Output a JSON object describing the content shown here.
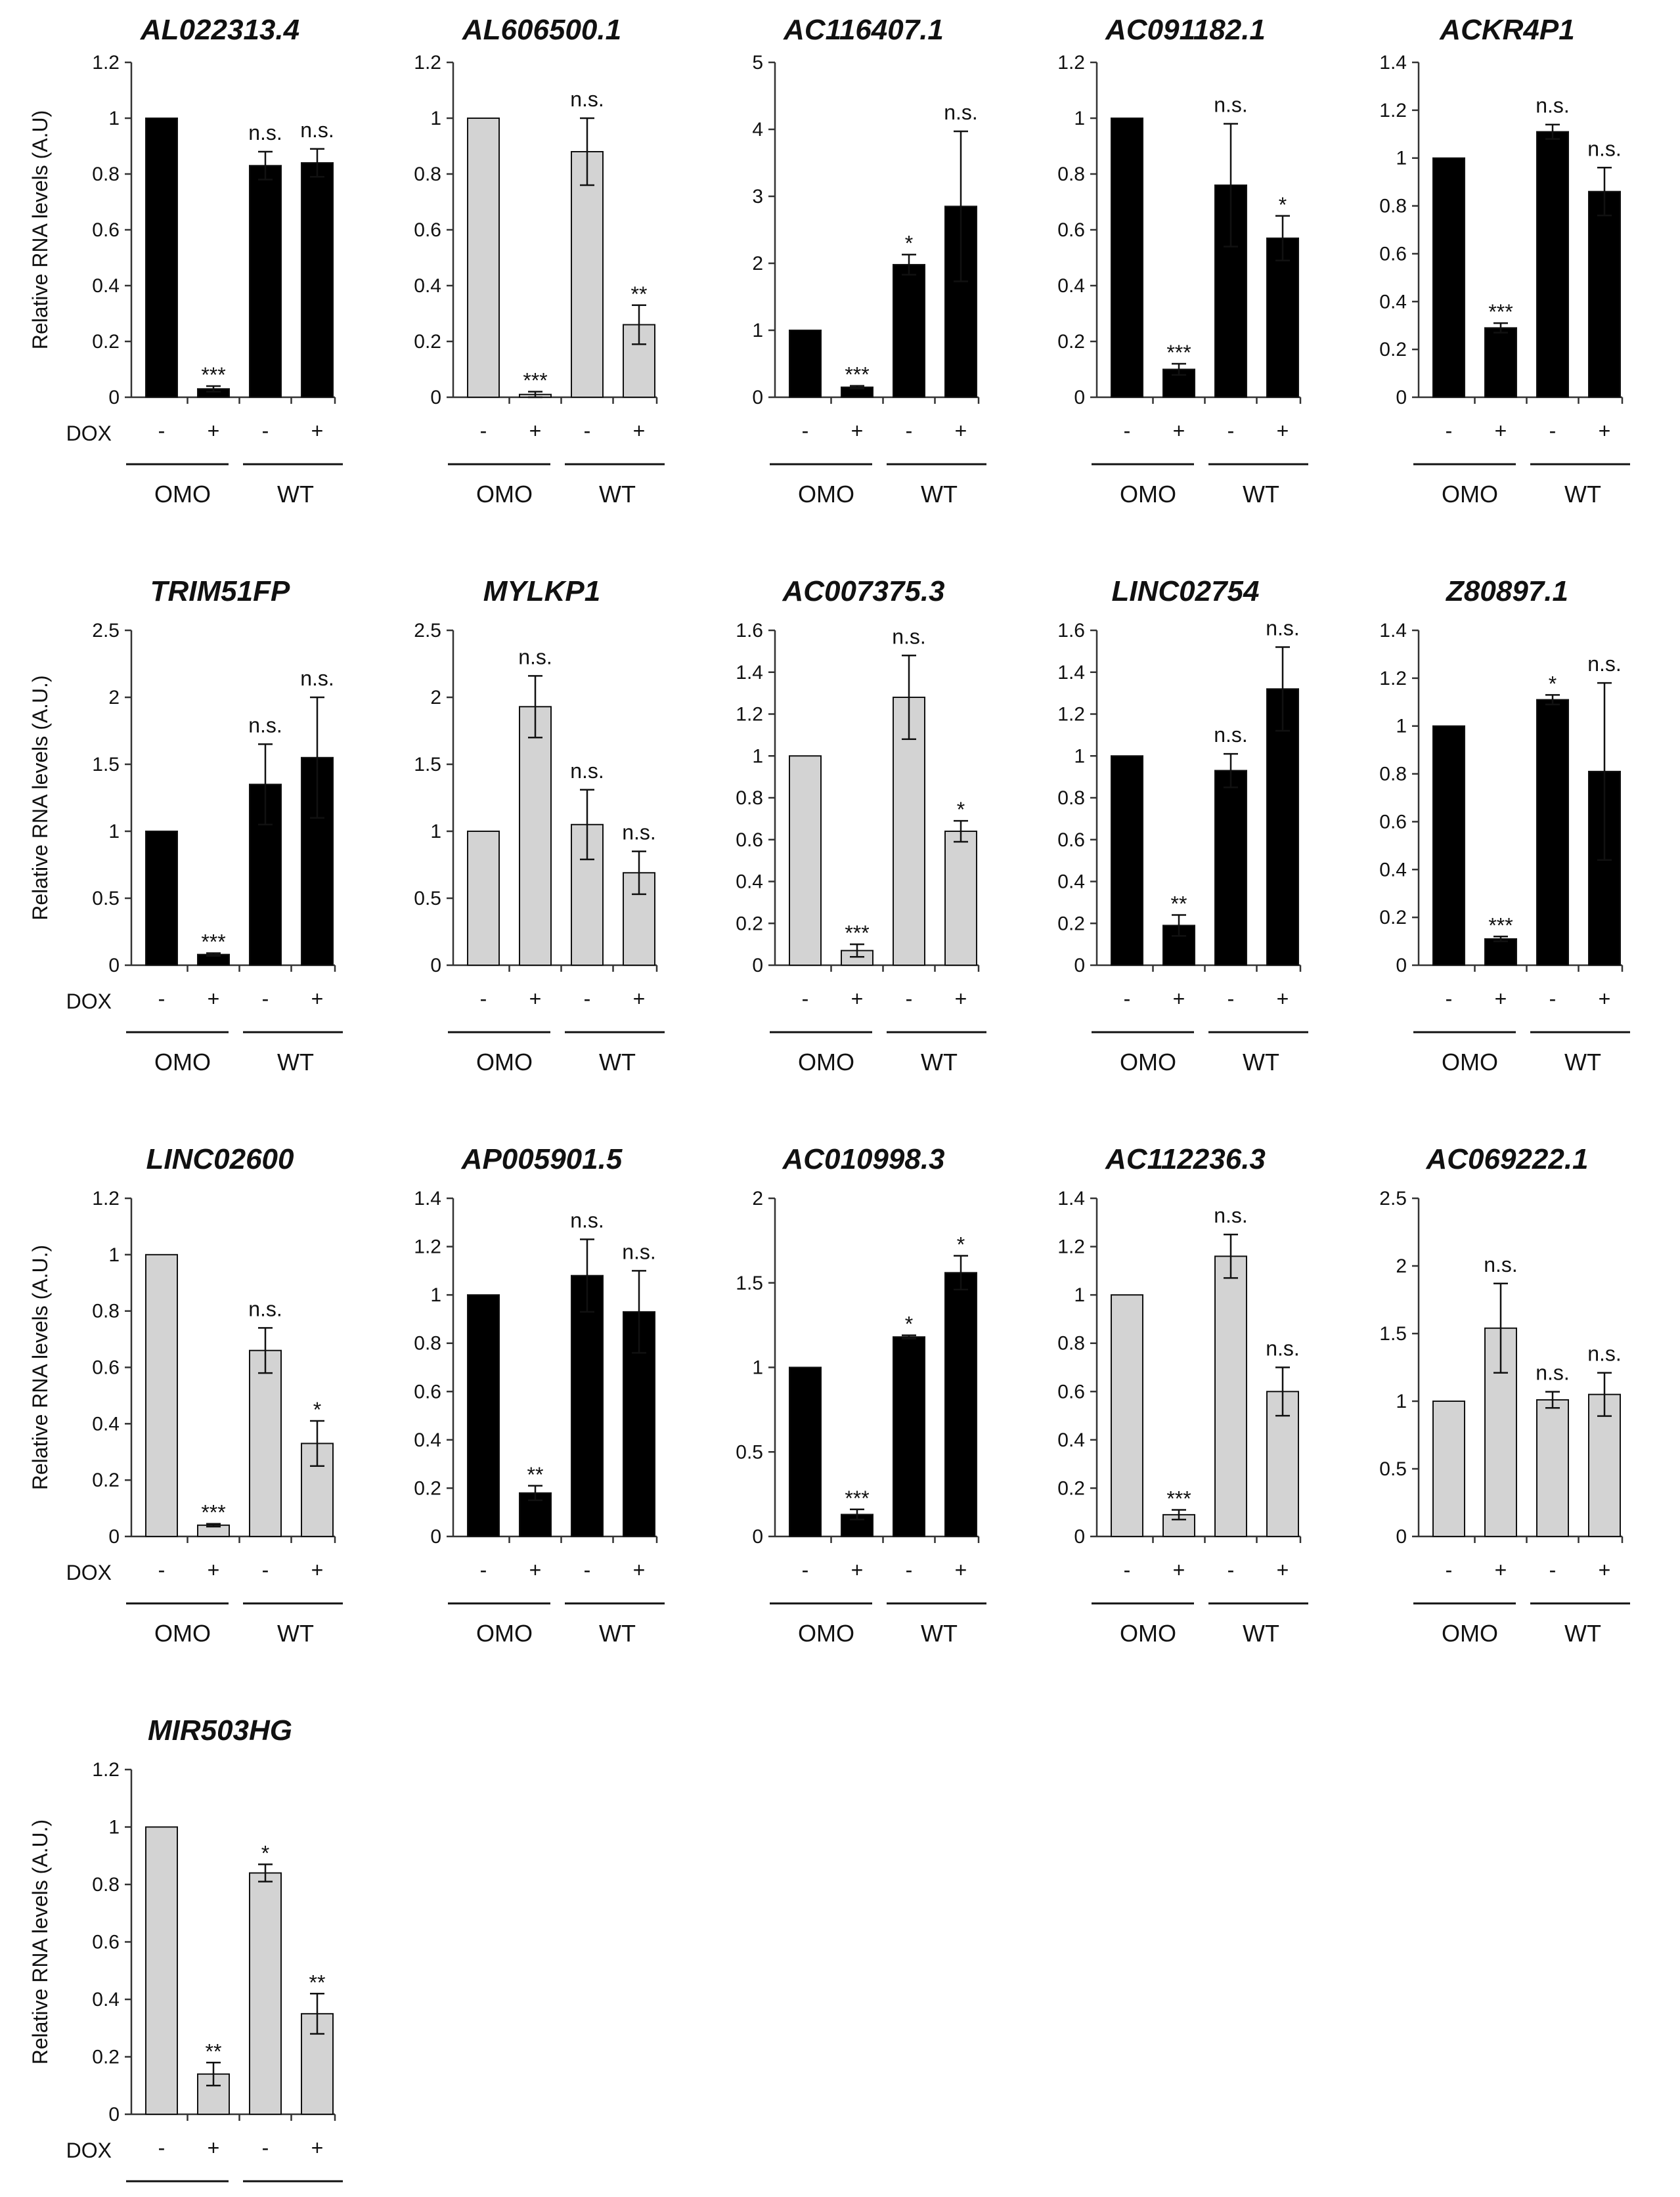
{
  "colors": {
    "black_bar": "#000000",
    "grey_bar": "#d3d3d3",
    "bar_edge": "#111111"
  },
  "labels": {
    "dox": "DOX",
    "minus": "-",
    "plus": "+",
    "omo": "OMO",
    "wt": "WT"
  },
  "chart_data": [
    {
      "type": "bar",
      "title": "AL022313.4",
      "ylabel": "Relative RNA levels (A.U)",
      "ylim": [
        0,
        1.2
      ],
      "yticks": [
        0,
        0.2,
        0.4,
        0.6,
        0.8,
        1,
        1.2
      ],
      "bar_color": "black",
      "categories": [
        "OMO -",
        "OMO +",
        "WT -",
        "WT +"
      ],
      "values": [
        1.0,
        0.03,
        0.83,
        0.84
      ],
      "errors": [
        0,
        0.01,
        0.05,
        0.05
      ],
      "significance": [
        "",
        "***",
        "n.s.",
        "n.s."
      ]
    },
    {
      "type": "bar",
      "title": "AL606500.1",
      "ylabel": "",
      "ylim": [
        0,
        1.2
      ],
      "yticks": [
        0,
        0.2,
        0.4,
        0.6,
        0.8,
        1,
        1.2
      ],
      "bar_color": "grey",
      "categories": [
        "OMO -",
        "OMO +",
        "WT -",
        "WT +"
      ],
      "values": [
        1.0,
        0.01,
        0.88,
        0.26
      ],
      "errors": [
        0,
        0.01,
        0.12,
        0.07
      ],
      "significance": [
        "",
        "***",
        "n.s.",
        "**"
      ]
    },
    {
      "type": "bar",
      "title": "AC116407.1",
      "ylabel": "",
      "ylim": [
        0,
        5
      ],
      "yticks": [
        0,
        1,
        2,
        3,
        4,
        5
      ],
      "bar_color": "black",
      "categories": [
        "OMO -",
        "OMO +",
        "WT -",
        "WT +"
      ],
      "values": [
        1.0,
        0.15,
        1.98,
        2.85
      ],
      "errors": [
        0,
        0.02,
        0.15,
        1.12
      ],
      "significance": [
        "",
        "***",
        "*",
        "n.s."
      ]
    },
    {
      "type": "bar",
      "title": "AC091182.1",
      "ylabel": "",
      "ylim": [
        0,
        1.2
      ],
      "yticks": [
        0,
        0.2,
        0.4,
        0.6,
        0.8,
        1,
        1.2
      ],
      "bar_color": "black",
      "categories": [
        "OMO -",
        "OMO +",
        "WT -",
        "WT +"
      ],
      "values": [
        1.0,
        0.1,
        0.76,
        0.57
      ],
      "errors": [
        0,
        0.02,
        0.22,
        0.08
      ],
      "significance": [
        "",
        "***",
        "n.s.",
        "*"
      ]
    },
    {
      "type": "bar",
      "title": "ACKR4P1",
      "ylabel": "",
      "ylim": [
        0,
        1.4
      ],
      "yticks": [
        0,
        0.2,
        0.4,
        0.6,
        0.8,
        1,
        1.2,
        1.4
      ],
      "bar_color": "black",
      "categories": [
        "OMO -",
        "OMO +",
        "WT -",
        "WT +"
      ],
      "values": [
        1.0,
        0.29,
        1.11,
        0.86
      ],
      "errors": [
        0,
        0.02,
        0.03,
        0.1
      ],
      "significance": [
        "",
        "***",
        "n.s.",
        "n.s."
      ]
    },
    {
      "type": "bar",
      "title": "TRIM51FP",
      "ylabel": "Relative RNA levels (A.U.)",
      "ylim": [
        0,
        2.5
      ],
      "yticks": [
        0,
        0.5,
        1,
        1.5,
        2,
        2.5
      ],
      "bar_color": "black",
      "categories": [
        "OMO -",
        "OMO +",
        "WT -",
        "WT +"
      ],
      "values": [
        1.0,
        0.08,
        1.35,
        1.55
      ],
      "errors": [
        0,
        0.01,
        0.3,
        0.45
      ],
      "significance": [
        "",
        "***",
        "n.s.",
        "n.s."
      ]
    },
    {
      "type": "bar",
      "title": "MYLKP1",
      "ylabel": "",
      "ylim": [
        0,
        2.5
      ],
      "yticks": [
        0,
        0.5,
        1,
        1.5,
        2,
        2.5
      ],
      "bar_color": "grey",
      "categories": [
        "OMO -",
        "OMO +",
        "WT -",
        "WT +"
      ],
      "values": [
        1.0,
        1.93,
        1.05,
        0.69
      ],
      "errors": [
        0,
        0.23,
        0.26,
        0.16
      ],
      "significance": [
        "",
        "n.s.",
        "n.s.",
        "n.s."
      ]
    },
    {
      "type": "bar",
      "title": "AC007375.3",
      "ylabel": "",
      "ylim": [
        0,
        1.6
      ],
      "yticks": [
        0,
        0.2,
        0.4,
        0.6,
        0.8,
        1,
        1.2,
        1.4,
        1.6
      ],
      "bar_color": "grey",
      "categories": [
        "OMO -",
        "OMO +",
        "WT -",
        "WT +"
      ],
      "values": [
        1.0,
        0.07,
        1.28,
        0.64
      ],
      "errors": [
        0,
        0.03,
        0.2,
        0.05
      ],
      "significance": [
        "",
        "***",
        "n.s.",
        "*"
      ]
    },
    {
      "type": "bar",
      "title": "LINC02754",
      "ylabel": "",
      "ylim": [
        0,
        1.6
      ],
      "yticks": [
        0,
        0.2,
        0.4,
        0.6,
        0.8,
        1,
        1.2,
        1.4,
        1.6
      ],
      "bar_color": "black",
      "categories": [
        "OMO -",
        "OMO +",
        "WT -",
        "WT +"
      ],
      "values": [
        1.0,
        0.19,
        0.93,
        1.32
      ],
      "errors": [
        0,
        0.05,
        0.08,
        0.2
      ],
      "significance": [
        "",
        "**",
        "n.s.",
        "n.s."
      ]
    },
    {
      "type": "bar",
      "title": "Z80897.1",
      "ylabel": "",
      "ylim": [
        0,
        1.4
      ],
      "yticks": [
        0,
        0.2,
        0.4,
        0.6,
        0.8,
        1,
        1.2,
        1.4
      ],
      "bar_color": "black",
      "categories": [
        "OMO -",
        "OMO +",
        "WT -",
        "WT +"
      ],
      "values": [
        1.0,
        0.11,
        1.11,
        0.81
      ],
      "errors": [
        0,
        0.01,
        0.02,
        0.37
      ],
      "significance": [
        "",
        "***",
        "*",
        "n.s."
      ]
    },
    {
      "type": "bar",
      "title": "LINC02600",
      "ylabel": "Relative RNA levels (A.U.)",
      "ylim": [
        0,
        1.2
      ],
      "yticks": [
        0,
        0.2,
        0.4,
        0.6,
        0.8,
        1,
        1.2
      ],
      "bar_color": "grey",
      "categories": [
        "OMO -",
        "OMO +",
        "WT -",
        "WT +"
      ],
      "values": [
        1.0,
        0.04,
        0.66,
        0.33
      ],
      "errors": [
        0,
        0.005,
        0.08,
        0.08
      ],
      "significance": [
        "",
        "***",
        "n.s.",
        "*"
      ]
    },
    {
      "type": "bar",
      "title": "AP005901.5",
      "ylabel": "",
      "ylim": [
        0,
        1.4
      ],
      "yticks": [
        0,
        0.2,
        0.4,
        0.6,
        0.8,
        1,
        1.2,
        1.4
      ],
      "bar_color": "black",
      "categories": [
        "OMO -",
        "OMO +",
        "WT -",
        "WT +"
      ],
      "values": [
        1.0,
        0.18,
        1.08,
        0.93
      ],
      "errors": [
        0,
        0.03,
        0.15,
        0.17
      ],
      "significance": [
        "",
        "**",
        "n.s.",
        "n.s."
      ]
    },
    {
      "type": "bar",
      "title": "AC010998.3",
      "ylabel": "",
      "ylim": [
        0,
        2
      ],
      "yticks": [
        0,
        0.5,
        1,
        1.5,
        2
      ],
      "bar_color": "black",
      "categories": [
        "OMO -",
        "OMO +",
        "WT -",
        "WT +"
      ],
      "values": [
        1.0,
        0.13,
        1.18,
        1.56
      ],
      "errors": [
        0,
        0.03,
        0.01,
        0.1
      ],
      "significance": [
        "",
        "***",
        "*",
        "*"
      ]
    },
    {
      "type": "bar",
      "title": "AC112236.3",
      "ylabel": "",
      "ylim": [
        0,
        1.4
      ],
      "yticks": [
        0,
        0.2,
        0.4,
        0.6,
        0.8,
        1,
        1.2,
        1.4
      ],
      "bar_color": "grey",
      "categories": [
        "OMO -",
        "OMO +",
        "WT -",
        "WT +"
      ],
      "values": [
        1.0,
        0.09,
        1.16,
        0.6
      ],
      "errors": [
        0,
        0.02,
        0.09,
        0.1
      ],
      "significance": [
        "",
        "***",
        "n.s.",
        "n.s."
      ]
    },
    {
      "type": "bar",
      "title": "AC069222.1",
      "ylabel": "",
      "ylim": [
        0,
        2.5
      ],
      "yticks": [
        0,
        0.5,
        1,
        1.5,
        2,
        2.5
      ],
      "bar_color": "grey",
      "categories": [
        "OMO -",
        "OMO +",
        "WT -",
        "WT +"
      ],
      "values": [
        1.0,
        1.54,
        1.01,
        1.05
      ],
      "errors": [
        0,
        0.33,
        0.06,
        0.16
      ],
      "significance": [
        "",
        "n.s.",
        "n.s.",
        "n.s."
      ]
    },
    {
      "type": "bar",
      "title": "MIR503HG",
      "ylabel": "Relative RNA levels (A.U.)",
      "ylim": [
        0,
        1.2
      ],
      "yticks": [
        0,
        0.2,
        0.4,
        0.6,
        0.8,
        1,
        1.2
      ],
      "bar_color": "grey",
      "categories": [
        "OMO -",
        "OMO +",
        "WT -",
        "WT +"
      ],
      "values": [
        1.0,
        0.14,
        0.84,
        0.35
      ],
      "errors": [
        0,
        0.04,
        0.03,
        0.07
      ],
      "significance": [
        "",
        "**",
        "*",
        "**"
      ]
    }
  ]
}
